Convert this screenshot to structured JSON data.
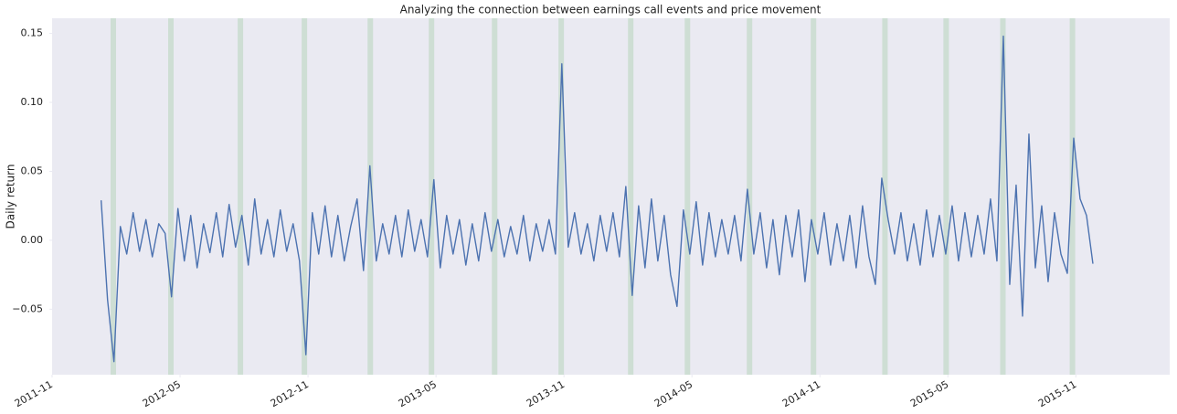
{
  "chart_data": {
    "type": "line",
    "title": "Analyzing the connection between earnings call events and price movement",
    "y_label": "Daily return",
    "xlim": [
      0,
      52.4
    ],
    "xticks": [
      {
        "value": 0,
        "label": "2011-11"
      },
      {
        "value": 6,
        "label": "2012-05"
      },
      {
        "value": 12,
        "label": "2012-11"
      },
      {
        "value": 18,
        "label": "2013-05"
      },
      {
        "value": 24,
        "label": "2013-11"
      },
      {
        "value": 30,
        "label": "2014-05"
      },
      {
        "value": 36,
        "label": "2014-11"
      },
      {
        "value": 42,
        "label": "2015-05"
      },
      {
        "value": 48,
        "label": "2015-11"
      }
    ],
    "ylim": [
      -0.0975,
      0.161
    ],
    "yticks": [
      {
        "value": -0.05,
        "label": "−0.05"
      },
      {
        "value": 0,
        "label": "0.00"
      },
      0.05,
      {
        "value": 0.1,
        "label": "0.10"
      },
      0.15
    ],
    "grid": false,
    "shaded_regions": {
      "color": "#c9dccf",
      "x": [
        2.87,
        5.57,
        8.83,
        11.83,
        14.92,
        17.79,
        20.75,
        23.87,
        27.13,
        29.79,
        32.7,
        35.7,
        39.05,
        41.92,
        44.58,
        47.84
      ]
    },
    "series": [
      {
        "color": "#4c72b0",
        "x": [
          2.3,
          2.6,
          2.9,
          3.2,
          3.5,
          3.8,
          4.1,
          4.4,
          4.7,
          5.0,
          5.3,
          5.6,
          5.9,
          6.2,
          6.5,
          6.8,
          7.1,
          7.4,
          7.7,
          8.0,
          8.3,
          8.6,
          8.9,
          9.2,
          9.5,
          9.8,
          10.1,
          10.4,
          10.7,
          11.0,
          11.3,
          11.6,
          11.9,
          12.2,
          12.5,
          12.8,
          13.1,
          13.4,
          13.7,
          14.0,
          14.3,
          14.6,
          14.9,
          15.2,
          15.5,
          15.8,
          16.1,
          16.4,
          16.7,
          17.0,
          17.3,
          17.6,
          17.9,
          18.2,
          18.5,
          18.8,
          19.1,
          19.4,
          19.7,
          20.0,
          20.3,
          20.6,
          20.9,
          21.2,
          21.5,
          21.8,
          22.1,
          22.4,
          22.7,
          23.0,
          23.3,
          23.6,
          23.9,
          24.2,
          24.5,
          24.8,
          25.1,
          25.4,
          25.7,
          26.0,
          26.3,
          26.6,
          26.9,
          27.2,
          27.5,
          27.8,
          28.1,
          28.4,
          28.7,
          29.0,
          29.3,
          29.6,
          29.9,
          30.2,
          30.5,
          30.8,
          31.1,
          31.4,
          31.7,
          32.0,
          32.3,
          32.6,
          32.9,
          33.2,
          33.5,
          33.8,
          34.1,
          34.4,
          34.7,
          35.0,
          35.3,
          35.6,
          35.9,
          36.2,
          36.5,
          36.8,
          37.1,
          37.4,
          37.7,
          38.0,
          38.3,
          38.6,
          38.9,
          39.2,
          39.5,
          39.8,
          40.1,
          40.4,
          40.7,
          41.0,
          41.3,
          41.6,
          41.9,
          42.2,
          42.5,
          42.8,
          43.1,
          43.4,
          43.7,
          44.0,
          44.3,
          44.6,
          44.9,
          45.2,
          45.5,
          45.8,
          46.1,
          46.4,
          46.7,
          47.0,
          47.3,
          47.6,
          47.9,
          48.2,
          48.5,
          48.8
        ],
        "values": [
          0.029,
          -0.043,
          -0.088,
          0.01,
          -0.01,
          0.02,
          -0.008,
          0.015,
          -0.012,
          0.012,
          0.005,
          -0.041,
          0.023,
          -0.015,
          0.018,
          -0.02,
          0.012,
          -0.009,
          0.02,
          -0.012,
          0.026,
          -0.005,
          0.018,
          -0.018,
          0.03,
          -0.01,
          0.015,
          -0.012,
          0.022,
          -0.008,
          0.012,
          -0.015,
          -0.083,
          0.02,
          -0.01,
          0.025,
          -0.012,
          0.018,
          -0.015,
          0.01,
          0.03,
          -0.022,
          0.054,
          -0.015,
          0.012,
          -0.01,
          0.018,
          -0.012,
          0.022,
          -0.008,
          0.015,
          -0.012,
          0.044,
          -0.02,
          0.018,
          -0.01,
          0.015,
          -0.018,
          0.012,
          -0.015,
          0.02,
          -0.008,
          0.015,
          -0.012,
          0.01,
          -0.01,
          0.018,
          -0.015,
          0.012,
          -0.008,
          0.015,
          -0.01,
          0.128,
          -0.005,
          0.02,
          -0.01,
          0.012,
          -0.015,
          0.018,
          -0.008,
          0.02,
          -0.012,
          0.039,
          -0.04,
          0.025,
          -0.02,
          0.03,
          -0.015,
          0.018,
          -0.025,
          -0.048,
          0.022,
          -0.01,
          0.028,
          -0.018,
          0.02,
          -0.012,
          0.015,
          -0.01,
          0.018,
          -0.015,
          0.037,
          -0.01,
          0.02,
          -0.02,
          0.015,
          -0.025,
          0.018,
          -0.012,
          0.022,
          -0.03,
          0.015,
          -0.01,
          0.02,
          -0.018,
          0.012,
          -0.015,
          0.018,
          -0.02,
          0.025,
          -0.012,
          -0.032,
          0.045,
          0.015,
          -0.01,
          0.02,
          -0.015,
          0.012,
          -0.018,
          0.022,
          -0.012,
          0.018,
          -0.01,
          0.025,
          -0.015,
          0.02,
          -0.012,
          0.018,
          -0.01,
          0.03,
          -0.015,
          0.148,
          -0.032,
          0.04,
          -0.055,
          0.077,
          -0.02,
          0.025,
          -0.03,
          0.02,
          -0.01,
          -0.024,
          0.074,
          0.03,
          0.018,
          -0.017
        ]
      }
    ]
  }
}
